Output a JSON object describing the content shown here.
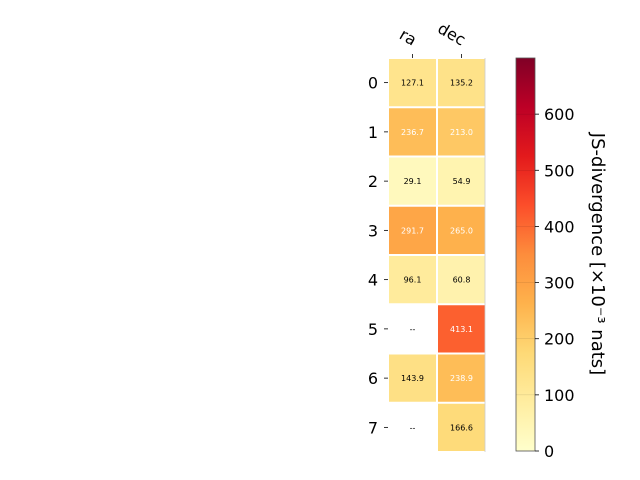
{
  "chart_data": {
    "type": "heatmap",
    "columns": [
      "ra",
      "dec"
    ],
    "rows": [
      "0",
      "1",
      "2",
      "3",
      "4",
      "5",
      "6",
      "7"
    ],
    "values": [
      [
        127.1,
        135.2
      ],
      [
        236.7,
        213.0
      ],
      [
        29.1,
        54.9
      ],
      [
        291.7,
        265.0
      ],
      [
        96.1,
        60.8
      ],
      [
        null,
        413.1
      ],
      [
        143.9,
        238.9
      ],
      [
        null,
        166.6
      ]
    ],
    "labels": [
      [
        "127.1",
        "135.2"
      ],
      [
        "236.7",
        "213.0"
      ],
      [
        "29.1",
        "54.9"
      ],
      [
        "291.7",
        "265.0"
      ],
      [
        "96.1",
        "60.8"
      ],
      [
        "--",
        "413.1"
      ],
      [
        "143.9",
        "238.9"
      ],
      [
        "--",
        "166.6"
      ]
    ],
    "colorbar": {
      "label": "JS-divergence [×10⁻³ nats]",
      "range": [
        0,
        700
      ],
      "ticks": [
        "0",
        "100",
        "200",
        "300",
        "400",
        "500",
        "600"
      ],
      "colormap": "YlOrRd"
    }
  }
}
